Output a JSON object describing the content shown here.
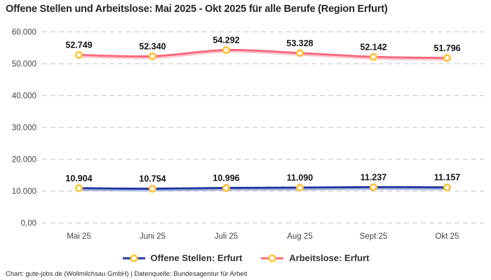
{
  "header": {
    "title": "Offene Stellen und Arbeitslose: Mai 2025 - Okt 2025 für alle Berufe (Region Erfurt)"
  },
  "chart_data": {
    "type": "line",
    "title": "Offene Stellen und Arbeitslose: Mai 2025 - Okt 2025 für alle Berufe (Region Erfurt)",
    "xlabel": "",
    "ylabel": "",
    "categories": [
      "Mai 25",
      "Juni 25",
      "Juli 25",
      "Aug 25",
      "Sept 25",
      "Okt 25"
    ],
    "series": [
      {
        "name": "Offene Stellen: Erfurt",
        "color": "#24399f",
        "shadow_color": "#aab5e3",
        "values": [
          10904,
          10754,
          10996,
          11090,
          11237,
          11157
        ],
        "value_labels": [
          "10.904",
          "10.754",
          "10.996",
          "11.090",
          "11.237",
          "11.157"
        ]
      },
      {
        "name": "Arbeitslose: Erfurt",
        "color": "#f8687f",
        "shadow_color": "#fcc6ce",
        "values": [
          52749,
          52340,
          54292,
          53328,
          52142,
          51796
        ],
        "value_labels": [
          "52.749",
          "52.340",
          "54.292",
          "53.328",
          "52.142",
          "51.796"
        ]
      }
    ],
    "y_ticks": [
      {
        "value": 0,
        "label": "0,00"
      },
      {
        "value": 10000,
        "label": "10.000"
      },
      {
        "value": 20000,
        "label": "20.000"
      },
      {
        "value": 30000,
        "label": "30.000"
      },
      {
        "value": 40000,
        "label": "40.000"
      },
      {
        "value": 50000,
        "label": "50.000"
      },
      {
        "value": 60000,
        "label": "60.000"
      }
    ],
    "ylim": [
      0,
      60000
    ],
    "grid": "horizontal-dashed",
    "gridline_color": "#cdcdcd",
    "marker": {
      "stroke": "#ffc337",
      "fill": "#ffffff"
    },
    "line_style": "smooth",
    "legend_position": "bottom"
  },
  "footer": {
    "attribution": "Chart: gute-jobs.de (Wollmilchsau GmbH) | Datenquelle: Bundesagentur für Arbeit"
  }
}
